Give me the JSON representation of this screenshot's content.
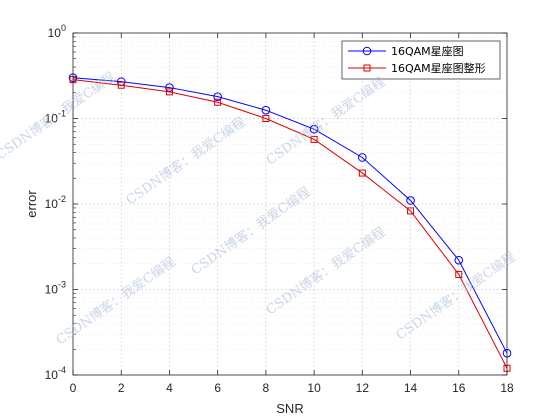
{
  "chart_data": {
    "type": "line",
    "title": "",
    "xlabel": "SNR",
    "ylabel": "error",
    "yscale": "log",
    "xlim": [
      0,
      18
    ],
    "ylim": [
      0.0001,
      1
    ],
    "grid": true,
    "minor_grid": true,
    "legend_position": "top-right",
    "x": [
      0,
      2,
      4,
      6,
      8,
      10,
      12,
      14,
      16,
      18
    ],
    "x_tick_labels": [
      "0",
      "2",
      "4",
      "6",
      "8",
      "10",
      "12",
      "14",
      "16",
      "18"
    ],
    "y_tick_labels": [
      {
        "base": "10",
        "exp": "-4",
        "value": 0.0001
      },
      {
        "base": "10",
        "exp": "-3",
        "value": 0.001
      },
      {
        "base": "10",
        "exp": "-2",
        "value": 0.01
      },
      {
        "base": "10",
        "exp": "-1",
        "value": 0.1
      },
      {
        "base": "10",
        "exp": "0",
        "value": 1
      }
    ],
    "series": [
      {
        "name": "16QAM星座图",
        "color": "#0000ff",
        "marker": "circle",
        "values": [
          0.3,
          0.27,
          0.23,
          0.18,
          0.125,
          0.075,
          0.035,
          0.011,
          0.0022,
          0.00018
        ]
      },
      {
        "name": "16QAM星座图整形",
        "color": "#dd0000",
        "marker": "square",
        "values": [
          0.285,
          0.245,
          0.205,
          0.155,
          0.1,
          0.057,
          0.023,
          0.0083,
          0.0015,
          0.00012
        ]
      }
    ]
  },
  "watermark": {
    "text": "CSDN博客：我爱C编程",
    "color": "#9fb4d6"
  }
}
